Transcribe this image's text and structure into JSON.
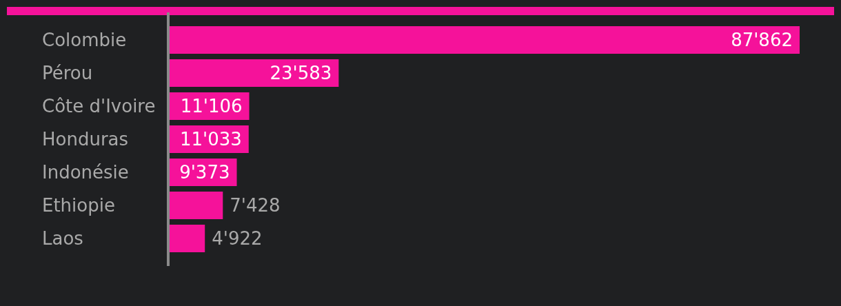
{
  "chart_data": {
    "type": "bar",
    "orientation": "horizontal",
    "categories": [
      "Colombie",
      "Pérou",
      "Côte d'Ivoire",
      "Honduras",
      "Indonésie",
      "Ethiopie",
      "Laos"
    ],
    "values": [
      87862,
      23583,
      11106,
      11033,
      9373,
      7428,
      4922
    ],
    "value_labels": [
      "87'862",
      "23'583",
      "11'106",
      "11'033",
      "9'373",
      "7'428",
      "4'922"
    ],
    "color": "#f5129a",
    "tick_labels": "y"
  }
}
